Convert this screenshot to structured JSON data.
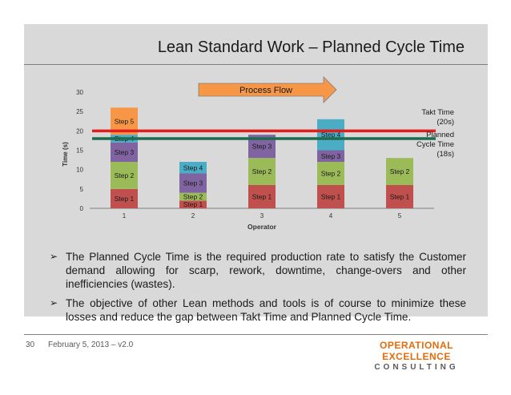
{
  "slide": {
    "title": "Lean Standard Work – Planned Cycle Time",
    "page_number": "30",
    "footer_text": "February 5, 2013 – v2.0",
    "logo_line1": "OPERATIONAL EXCELLENCE",
    "logo_line2": "CONSULTING",
    "bullet_icon": "arrow-right-icon",
    "bullets": [
      "The Planned Cycle Time is the required production rate to satisfy the Customer demand allowing for scarp, rework, downtime, change-overs and other inefficiencies (wastes).",
      "The objective of other Lean methods and tools is of course to minimize these losses and reduce the gap between Takt Time and Planned Cycle Time."
    ]
  },
  "chart_data": {
    "type": "bar",
    "stacked": true,
    "xlabel": "Operator",
    "ylabel": "Time (s)",
    "ylim": [
      0,
      30
    ],
    "yticks": [
      0,
      5,
      10,
      15,
      20,
      25,
      30
    ],
    "categories": [
      "1",
      "2",
      "3",
      "4",
      "5"
    ],
    "grid": false,
    "legend": "none",
    "series": [
      {
        "name": "Step 1",
        "color": "#c0504d",
        "values": [
          5,
          2,
          6,
          6,
          6
        ]
      },
      {
        "name": "Step 2",
        "color": "#9bbb59",
        "values": [
          7,
          2,
          7,
          6,
          7
        ]
      },
      {
        "name": "Step 3",
        "color": "#8064a2",
        "values": [
          5,
          5,
          6,
          3,
          0
        ]
      },
      {
        "name": "Step 4",
        "color": "#4bacc6",
        "values": [
          2,
          3,
          0,
          8,
          0
        ]
      },
      {
        "name": "Step 5",
        "color": "#f79646",
        "values": [
          7,
          0,
          0,
          0,
          0
        ]
      }
    ],
    "segment_labels": [
      [
        "Step 1",
        "Step 2",
        "Step 3",
        "Step 4",
        "Step 5"
      ],
      [
        "Step 1",
        "Step 2",
        "Step 3",
        "Step 4",
        ""
      ],
      [
        "Step 1",
        "Step 2",
        "Step 3",
        "",
        ""
      ],
      [
        "Step 1",
        "Step 2",
        "Step 3",
        "Step 4",
        ""
      ],
      [
        "Step 1",
        "Step 2",
        "",
        "",
        ""
      ]
    ],
    "reference_lines": [
      {
        "label_lines": [
          "Takt Time",
          "(20s)"
        ],
        "value": 20,
        "color": "#e31c1c"
      },
      {
        "label_lines": [
          "Planned",
          "Cycle Time",
          "(18s)"
        ],
        "value": 18,
        "color": "#1f6b4f"
      }
    ],
    "annotations": [
      {
        "text": "Process Flow",
        "type": "arrow",
        "color": "#f79646"
      }
    ]
  }
}
